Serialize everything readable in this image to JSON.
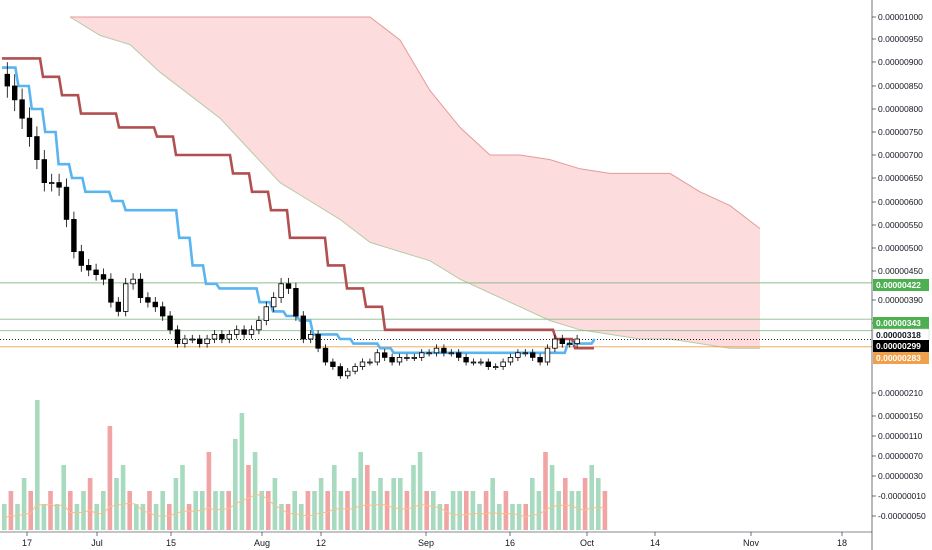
{
  "chart_data": {
    "type": "candlestick-ichimoku",
    "title": "",
    "xlabel": "",
    "ylabel": "",
    "x_ticks": [
      "17",
      "Jul",
      "15",
      "Aug",
      "12",
      "Sep",
      "16",
      "Oct",
      "14",
      "Nov",
      "18"
    ],
    "y_ticks": [
      "0.00001000",
      "0.00000950",
      "0.00000900",
      "0.00000850",
      "0.00000800",
      "0.00000750",
      "0.00000700",
      "0.00000650",
      "0.00000600",
      "0.00000550",
      "0.00000500",
      "0.00000450",
      "0.00000390",
      "0.00000350",
      "0.00000210",
      "0.00000150",
      "0.00000110",
      "0.00000070",
      "0.00000030",
      "-0.00000010",
      "-0.00000050"
    ],
    "price_labels": [
      {
        "value": "0.00000422",
        "color": "#4caf50"
      },
      {
        "value": "0.00000343",
        "color": "#4caf50"
      },
      {
        "value": "0.00000318",
        "color": "#ffffff"
      },
      {
        "value": "0.00000299",
        "color": "#000000"
      },
      {
        "value": "0.00000283",
        "color": "#f0a04b"
      }
    ],
    "horizontal_levels": [
      {
        "value": 4.22e-06,
        "color": "#8fbc8f"
      },
      {
        "value": 3.43e-06,
        "color": "#8fbc8f"
      },
      {
        "value": 3.18e-06,
        "color": "#8fbc8f"
      },
      {
        "value": 2.99e-06,
        "color": "#000000"
      },
      {
        "value": 2.83e-06,
        "color": "#f0a04b"
      }
    ],
    "price_series_close": [
      8.5e-06,
      8.2e-06,
      7.8e-06,
      7.4e-06,
      6.9e-06,
      6.4e-06,
      6.4e-06,
      6.3e-06,
      5.6e-06,
      4.9e-06,
      4.6e-06,
      4.5e-06,
      4.4e-06,
      4.3e-06,
      3.8e-06,
      3.6e-06,
      4.2e-06,
      4.3e-06,
      3.9e-06,
      3.8e-06,
      3.7e-06,
      3.5e-06,
      3.2e-06,
      2.9e-06,
      3e-06,
      3e-06,
      2.9e-06,
      3e-06,
      3.1e-06,
      3e-06,
      3.1e-06,
      3.2e-06,
      3.1e-06,
      3.2e-06,
      3.4e-06,
      3.7e-06,
      3.9e-06,
      4.2e-06,
      4.1e-06,
      3.5e-06,
      3e-06,
      3.1e-06,
      2.8e-06,
      2.5e-06,
      2.4e-06,
      2.2e-06,
      2.3e-06,
      2.4e-06,
      2.5e-06,
      2.5e-06,
      2.7e-06,
      2.6e-06,
      2.5e-06,
      2.6e-06,
      2.6e-06,
      2.6e-06,
      2.7e-06,
      2.7e-06,
      2.8e-06,
      2.7e-06,
      2.7e-06,
      2.6e-06,
      2.5e-06,
      2.5e-06,
      2.5e-06,
      2.4e-06,
      2.4e-06,
      2.5e-06,
      2.6e-06,
      2.7e-06,
      2.7e-06,
      2.6e-06,
      2.5e-06,
      2.8e-06,
      3e-06,
      2.9e-06,
      2.9e-06,
      3e-06
    ],
    "tenkan_sen": [
      8.9e-06,
      8.5e-06,
      8e-06,
      7.5e-06,
      6.8e-06,
      6.5e-06,
      6.2e-06,
      6.2e-06,
      6e-06,
      5.8e-06,
      5.8e-06,
      5.8e-06,
      5.8e-06,
      5.2e-06,
      4.6e-06,
      4.2e-06,
      4.1e-06,
      4.1e-06,
      4.1e-06,
      3.8e-06,
      3.6e-06,
      3.5e-06,
      3.4e-06,
      3.1e-06,
      3.1e-06,
      3e-06,
      2.9e-06,
      2.9e-06,
      2.8e-06,
      2.7e-06,
      2.7e-06,
      2.7e-06,
      2.7e-06,
      2.7e-06,
      2.7e-06,
      2.7e-06,
      2.7e-06,
      2.7e-06,
      2.7e-06,
      2.7e-06,
      2.7e-06,
      2.7e-06,
      2.9e-06,
      2.9e-06,
      3e-06
    ],
    "kijun_sen": [
      9.1e-06,
      9.1e-06,
      8.7e-06,
      8.3e-06,
      7.9e-06,
      7.9e-06,
      7.6e-06,
      7.6e-06,
      7.4e-06,
      7e-06,
      7e-06,
      7e-06,
      6.6e-06,
      6.2e-06,
      5.8e-06,
      5.2e-06,
      5.2e-06,
      4.6e-06,
      4.1e-06,
      3.7e-06,
      3.2e-06,
      3.2e-06,
      3.2e-06,
      3.2e-06,
      3.2e-06,
      3.2e-06,
      3.2e-06,
      3.2e-06,
      3.2e-06,
      3e-06,
      2.8e-06,
      2.8e-06
    ],
    "cloud_upper": [
      1e-05,
      1e-05,
      1e-05,
      1e-05,
      1e-05,
      1e-05,
      1e-05,
      1e-05,
      1e-05,
      1e-05,
      1e-05,
      9.5e-06,
      8.4e-06,
      7.6e-06,
      7e-06,
      7e-06,
      6.9e-06,
      6.7e-06,
      6.6e-06,
      6.6e-06,
      6.6e-06,
      6.2e-06,
      5.9e-06,
      5.4e-06
    ],
    "cloud_lower": [
      1e-05,
      9.6e-06,
      9.4e-06,
      8.8e-06,
      8.3e-06,
      7.8e-06,
      7.1e-06,
      6.4e-06,
      6e-06,
      5.6e-06,
      5.1e-06,
      4.9e-06,
      4.7e-06,
      4.3e-06,
      4e-06,
      3.7e-06,
      3.4e-06,
      3.2e-06,
      3.1e-06,
      3e-06,
      3e-06,
      2.9e-06,
      2.8e-06,
      2.8e-06
    ],
    "volume_series": [
      0.2,
      0.3,
      0.2,
      0.4,
      0.3,
      1.0,
      0.2,
      0.3,
      0.2,
      0.5,
      0.3,
      0.2,
      0.3,
      0.4,
      0.2,
      0.3,
      0.8,
      0.4,
      0.5,
      0.3,
      0.2,
      0.2,
      0.3,
      0.2,
      0.3,
      0.2,
      0.4,
      0.5,
      0.2,
      0.3,
      0.3,
      0.6,
      0.3,
      0.3,
      0.3,
      0.7,
      0.9,
      0.5,
      0.6,
      0.3,
      0.3,
      0.4,
      0.2,
      0.2,
      0.3,
      0.2,
      0.3,
      0.3,
      0.4,
      0.3,
      0.5,
      0.3,
      0.3,
      0.4,
      0.6,
      0.5,
      0.3,
      0.4,
      0.3,
      0.4,
      0.4,
      0.3,
      0.5,
      0.6,
      0.3,
      0.3,
      0.2,
      0.2,
      0.3,
      0.3,
      0.3,
      0.3,
      0.2,
      0.3,
      0.4,
      0.2,
      0.3,
      0.2,
      0.2,
      0.2,
      0.4,
      0.3,
      0.6,
      0.5,
      0.3,
      0.4,
      0.3,
      0.3,
      0.4,
      0.5,
      0.4,
      0.3
    ],
    "colors": {
      "up_candle": "#ffffff",
      "down_candle": "#000000",
      "tenkan": "#5ab4f0",
      "kijun": "#b05050",
      "cloud_fill": "#fcdada",
      "cloud_edge_green": "#b9c9a8",
      "cloud_edge_red": "#e69a9a",
      "vol_up": "#9fd6b9",
      "vol_down": "#ef9a9a",
      "vol_ma": "#f7c089"
    }
  }
}
